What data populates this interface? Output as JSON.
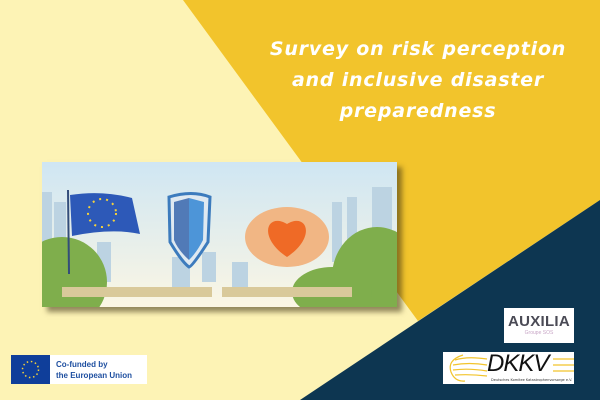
{
  "title_lines": [
    "Survey on risk perception",
    "and inclusive disaster",
    "preparedness"
  ],
  "colors": {
    "background_light": "#fdf3b5",
    "yellow": "#f2c42c",
    "navy": "#0d3651",
    "title_text": "#ffffff"
  },
  "eu_badge": {
    "line1": "Co-funded by",
    "line2": "the European Union"
  },
  "auxilia_logo": {
    "name": "AUXILIA",
    "sub": "Groupe SOS"
  },
  "dkkv_logo": {
    "name": "DKKV",
    "sub": "Deutsches Komitee Katastrophenvorsorge e.V."
  }
}
